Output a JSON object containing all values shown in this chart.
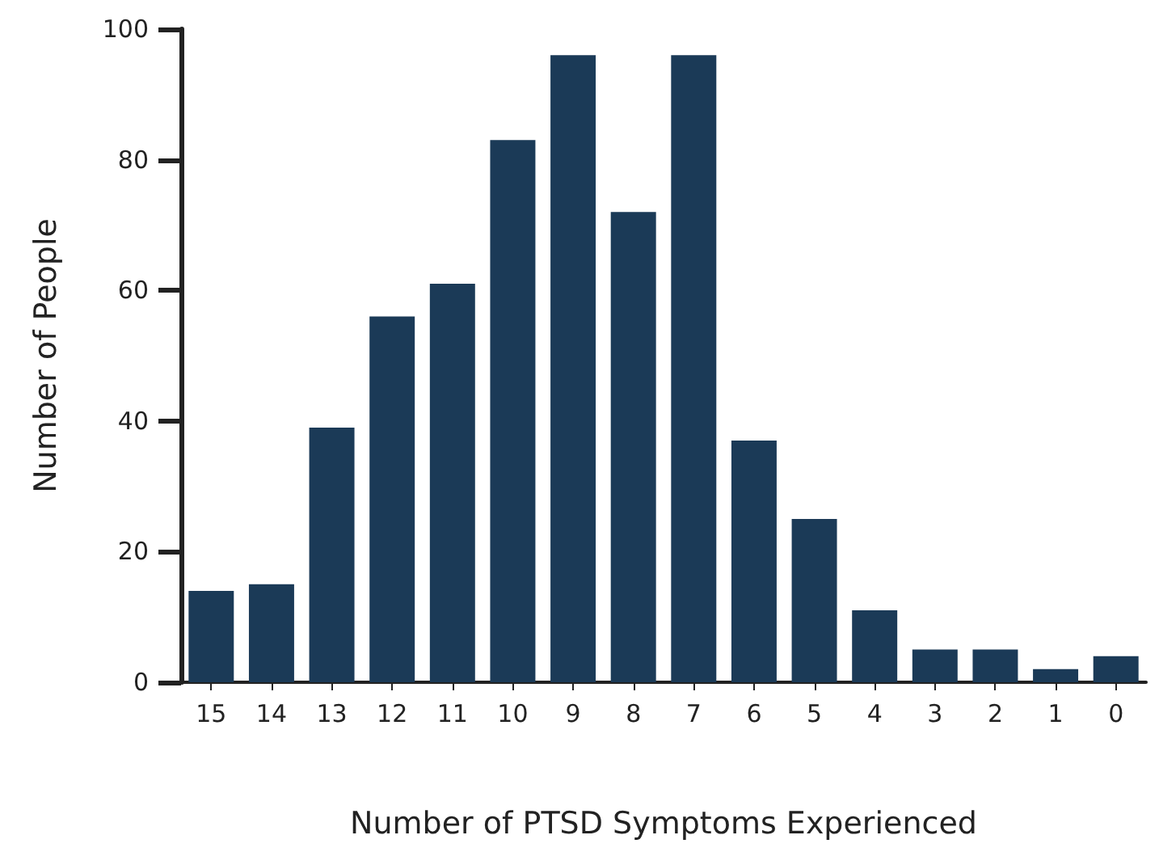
{
  "chart_data": {
    "type": "bar",
    "xlabel": "Number of PTSD Symptoms Experienced",
    "ylabel": "Number of People",
    "categories": [
      "15",
      "14",
      "13",
      "12",
      "11",
      "10",
      "9",
      "8",
      "7",
      "6",
      "5",
      "4",
      "3",
      "2",
      "1",
      "0"
    ],
    "values": [
      14,
      15,
      39,
      56,
      61,
      83,
      96,
      72,
      96,
      37,
      25,
      11,
      5,
      5,
      2,
      4
    ],
    "color": "#1b3a57",
    "ylim": [
      0,
      100
    ],
    "yticks": [
      0,
      20,
      40,
      60,
      80,
      100
    ],
    "grid": false
  }
}
